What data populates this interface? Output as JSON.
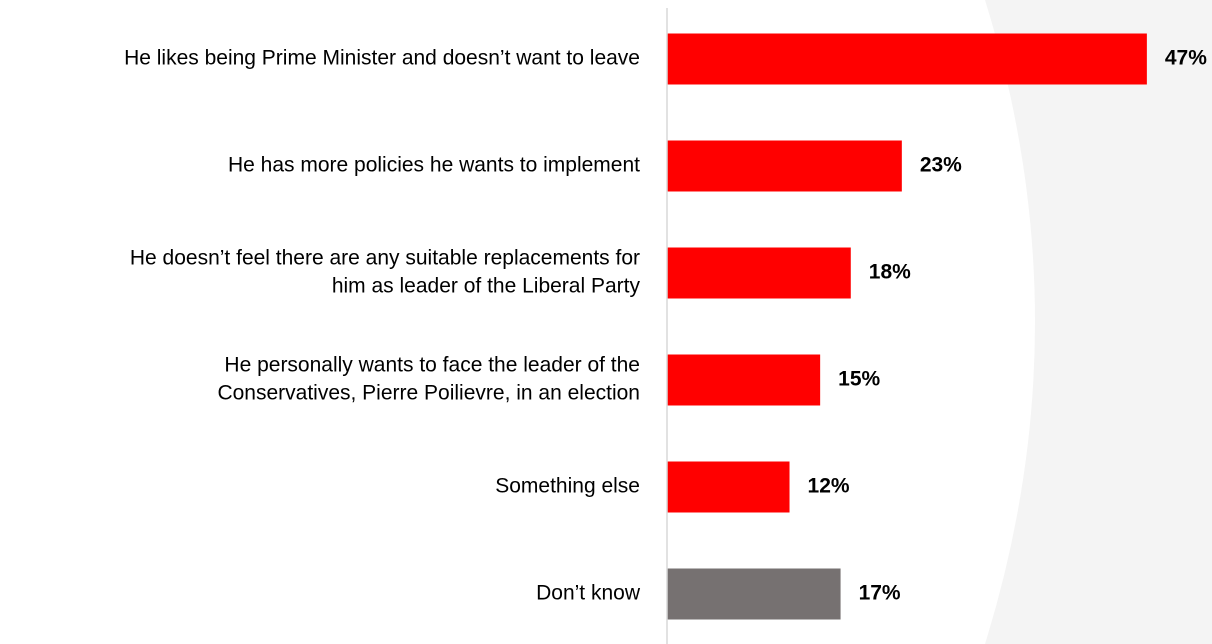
{
  "chart_data": {
    "type": "bar",
    "orientation": "horizontal",
    "categories": [
      [
        "He likes being Prime Minister and doesn’t want to leave"
      ],
      [
        "He has more policies he wants to implement"
      ],
      [
        "He doesn’t feel there are any suitable replacements for",
        "him as leader of the Liberal Party"
      ],
      [
        "He personally wants to face the leader of the",
        "Conservatives, Pierre Poilievre, in an election"
      ],
      [
        "Something else"
      ],
      [
        "Don’t know"
      ]
    ],
    "values": [
      47,
      23,
      18,
      15,
      12,
      17
    ],
    "value_labels": [
      "47%",
      "23%",
      "18%",
      "15%",
      "12%",
      "17%"
    ],
    "bar_colors": [
      "#ff0000",
      "#ff0000",
      "#ff0000",
      "#ff0000",
      "#ff0000",
      "#767171"
    ],
    "title": "",
    "xlabel": "",
    "ylabel": "",
    "xlim": [
      0,
      50
    ],
    "grid": false,
    "legend": "none"
  },
  "colors": {
    "accent": "#ff0000",
    "neutral": "#767171",
    "axis": "#d9d9d9",
    "background_arc": "#f4f4f4"
  }
}
